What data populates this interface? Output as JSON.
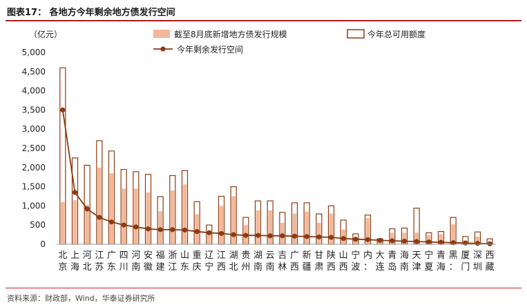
{
  "header": {
    "title": "图表17：  各地方今年剩余地方债发行空间"
  },
  "footer": {
    "source": "资料来源：财政部，Wind，华泰证券研究所"
  },
  "chart_data": {
    "type": "bar",
    "title": "各地方今年剩余地方债发行空间",
    "ylabel": "（亿元）",
    "ylim": [
      0,
      5000
    ],
    "yticks": [
      "0",
      "500",
      "1,000",
      "1,500",
      "2,000",
      "2,500",
      "3,000",
      "3,500",
      "4,000",
      "4,500",
      "5,000"
    ],
    "categories": [
      "北京",
      "上海",
      "河北",
      "江苏",
      "广东",
      "四川",
      "河南",
      "安徽",
      "福建",
      "浙江",
      "山东",
      "重庆",
      "辽宁",
      "江西",
      "湖北",
      "贵州",
      "湖南",
      "云南",
      "吉林",
      "广西",
      "新疆",
      "甘肃",
      "陕西",
      "山西",
      "宁波",
      "内蒙古",
      "大连",
      "青岛",
      "海南",
      "天津",
      "宁夏",
      "青海",
      "黑龙江",
      "厦门",
      "深圳",
      "西藏"
    ],
    "legend_position": "top",
    "colors": {
      "issued": "#f4b899",
      "quota_border": "#8b3a12",
      "line": "#8b3a12"
    },
    "series": [
      {
        "name": "截至8月底新增地方债发行规模",
        "values": [
          1100,
          1150,
          1020,
          2000,
          1850,
          1450,
          1450,
          1350,
          860,
          1400,
          1560,
          780,
          320,
          1000,
          1250,
          500,
          880,
          880,
          560,
          800,
          850,
          560,
          800,
          380,
          150,
          680,
          60,
          300,
          300,
          300,
          240,
          260,
          520,
          100,
          200,
          70
        ]
      },
      {
        "name": "今年总可用额度",
        "values": [
          4600,
          2250,
          2060,
          2700,
          2430,
          1950,
          1890,
          1820,
          1240,
          1790,
          1920,
          1110,
          500,
          1250,
          1500,
          700,
          1130,
          1130,
          830,
          1080,
          1080,
          790,
          1000,
          630,
          270,
          760,
          140,
          400,
          420,
          940,
          300,
          330,
          700,
          200,
          320,
          140
        ]
      },
      {
        "name": "今年剩余发行空间",
        "type": "line",
        "values": [
          3500,
          1350,
          920,
          700,
          580,
          500,
          450,
          400,
          380,
          380,
          370,
          330,
          300,
          280,
          250,
          230,
          230,
          220,
          220,
          210,
          200,
          190,
          180,
          150,
          130,
          120,
          100,
          90,
          80,
          70,
          60,
          50,
          40,
          30,
          20,
          10
        ]
      }
    ]
  }
}
